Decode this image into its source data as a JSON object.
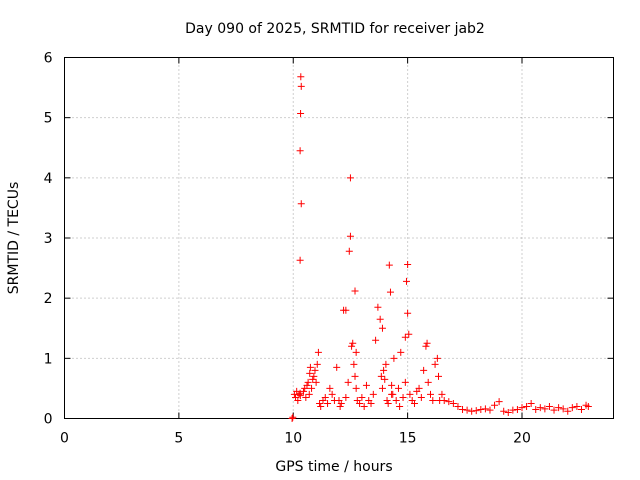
{
  "chart_data": {
    "type": "scatter",
    "title": "Day 090 of 2025, SRMTID for receiver jab2",
    "xlabel": "GPS time / hours",
    "ylabel": "SRMTID / TECUs",
    "xlim": [
      0,
      24
    ],
    "ylim": [
      0,
      6
    ],
    "xticks": [
      0,
      5,
      10,
      15,
      20
    ],
    "yticks": [
      0,
      1,
      2,
      3,
      4,
      5,
      6
    ],
    "xtick_labels": [
      "0",
      "5",
      "10",
      "15",
      "20"
    ],
    "ytick_labels": [
      "0",
      "1",
      "2",
      "3",
      "4",
      "5",
      "6"
    ],
    "grid": true,
    "marker": "+",
    "color": "#ff0000",
    "series": [
      {
        "name": "SRMTID",
        "x": [
          9.95,
          9.98,
          10.05,
          10.1,
          10.15,
          10.2,
          10.25,
          10.3,
          10.35,
          10.3,
          10.32,
          10.35,
          10.33,
          10.31,
          10.3,
          10.45,
          10.5,
          10.55,
          10.6,
          10.65,
          10.7,
          10.72,
          10.75,
          10.8,
          10.85,
          10.9,
          10.95,
          11.0,
          11.05,
          11.1,
          11.15,
          11.2,
          11.3,
          11.4,
          11.5,
          11.6,
          11.7,
          11.8,
          11.9,
          12.0,
          12.05,
          12.1,
          12.2,
          12.3,
          12.4,
          12.45,
          12.5,
          12.5,
          12.55,
          12.6,
          12.65,
          12.7,
          12.7,
          12.75,
          12.8,
          12.9,
          13.0,
          13.1,
          13.2,
          13.3,
          13.4,
          13.5,
          13.6,
          13.7,
          13.8,
          13.85,
          13.9,
          13.95,
          14.0,
          14.05,
          14.1,
          14.15,
          14.2,
          14.25,
          14.3,
          14.4,
          14.5,
          14.6,
          14.65,
          14.7,
          14.8,
          14.9,
          14.95,
          15.0,
          15.0,
          15.05,
          15.1,
          15.2,
          15.3,
          15.4,
          15.5,
          15.6,
          15.7,
          15.8,
          15.85,
          15.9,
          16.0,
          16.1,
          16.2,
          16.3,
          16.35,
          16.4,
          16.5,
          16.6,
          16.8,
          17.0,
          17.2,
          17.4,
          17.6,
          17.8,
          18.0,
          18.2,
          18.4,
          18.6,
          18.8,
          19.0,
          19.2,
          19.4,
          19.6,
          19.8,
          20.0,
          20.2,
          20.4,
          20.6,
          20.8,
          21.0,
          21.2,
          21.4,
          21.6,
          21.8,
          22.0,
          22.2,
          22.4,
          22.6,
          22.8,
          22.9,
          12.3,
          12.75,
          13.9,
          14.3,
          14.35,
          14.9
        ],
        "y": [
          0.0,
          0.02,
          0.4,
          0.35,
          0.45,
          0.3,
          0.4,
          2.63,
          3.57,
          4.45,
          5.07,
          5.52,
          5.68,
          0.38,
          0.42,
          0.45,
          0.5,
          0.35,
          0.55,
          0.6,
          0.4,
          0.75,
          0.85,
          0.5,
          0.65,
          0.7,
          0.8,
          0.6,
          0.9,
          1.1,
          0.25,
          0.2,
          0.3,
          0.35,
          0.25,
          0.5,
          0.4,
          0.3,
          0.85,
          0.3,
          0.2,
          0.25,
          1.8,
          0.35,
          0.6,
          2.78,
          3.03,
          4.0,
          1.2,
          1.25,
          0.9,
          2.12,
          0.7,
          0.5,
          0.3,
          0.25,
          0.35,
          0.2,
          0.55,
          0.3,
          0.25,
          0.4,
          1.3,
          1.85,
          1.65,
          0.7,
          0.5,
          0.8,
          0.65,
          0.9,
          0.3,
          0.25,
          2.55,
          2.1,
          0.4,
          1.0,
          0.3,
          0.5,
          0.2,
          1.1,
          0.35,
          0.6,
          2.28,
          2.56,
          1.75,
          1.4,
          0.4,
          0.3,
          0.25,
          0.45,
          0.5,
          0.35,
          0.8,
          1.2,
          1.25,
          0.6,
          0.4,
          0.3,
          0.9,
          1.0,
          0.7,
          0.3,
          0.4,
          0.3,
          0.28,
          0.25,
          0.2,
          0.15,
          0.14,
          0.12,
          0.13,
          0.15,
          0.16,
          0.14,
          0.22,
          0.28,
          0.12,
          0.1,
          0.14,
          0.15,
          0.18,
          0.2,
          0.25,
          0.15,
          0.18,
          0.16,
          0.2,
          0.14,
          0.18,
          0.16,
          0.12,
          0.18,
          0.2,
          0.15,
          0.22,
          0.2,
          1.8,
          1.1,
          1.5,
          0.55,
          0.4,
          1.35
        ]
      }
    ]
  }
}
